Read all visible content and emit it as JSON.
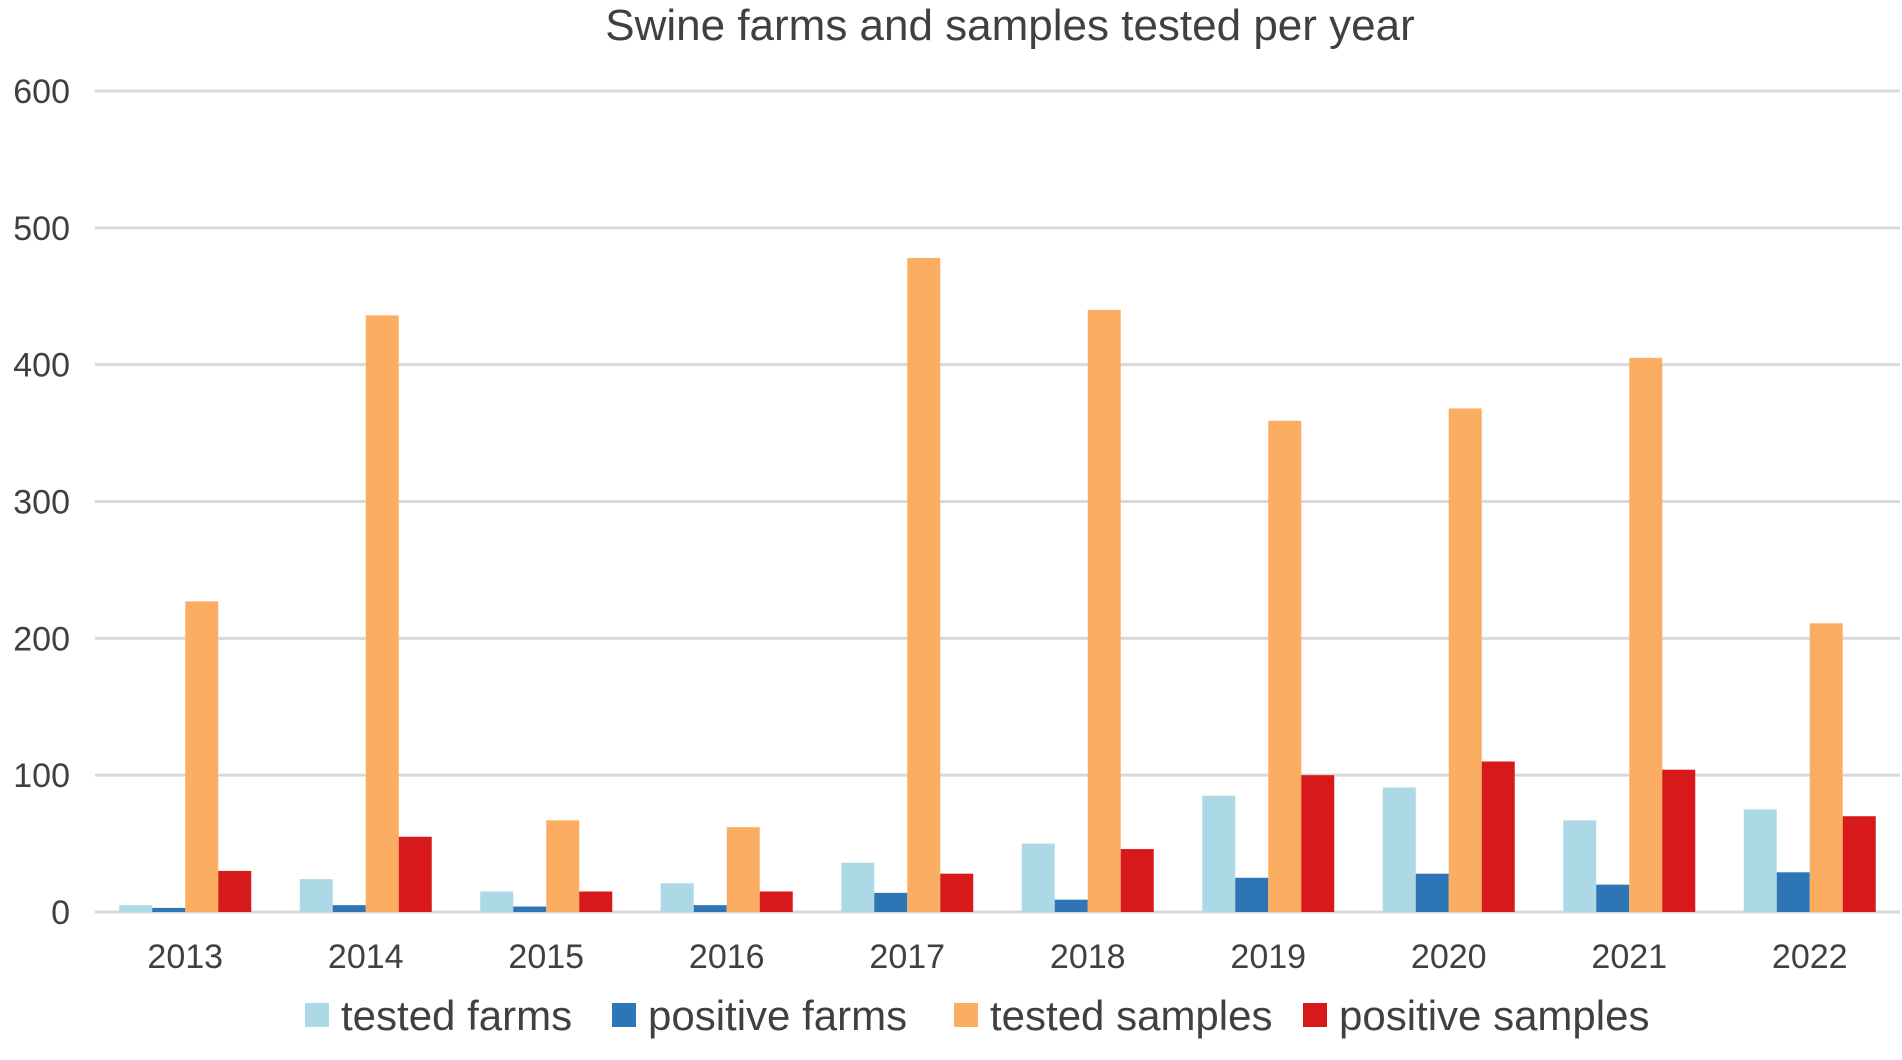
{
  "chart_data": {
    "type": "bar",
    "title": "Swine farms and samples tested per year",
    "xlabel": "",
    "ylabel": "",
    "ylim": [
      0,
      600
    ],
    "yticks": [
      0,
      100,
      200,
      300,
      400,
      500,
      600
    ],
    "grid": true,
    "legend_position": "bottom",
    "categories": [
      "2013",
      "2014",
      "2015",
      "2016",
      "2017",
      "2018",
      "2019",
      "2020",
      "2021",
      "2022"
    ],
    "series": [
      {
        "name": "tested farms",
        "color": "#add8e6",
        "values": [
          5,
          24,
          15,
          21,
          36,
          50,
          85,
          91,
          67,
          75
        ]
      },
      {
        "name": "positive farms",
        "color": "#2e75b6",
        "values": [
          3,
          5,
          4,
          5,
          14,
          9,
          25,
          28,
          20,
          29
        ]
      },
      {
        "name": "tested samples",
        "color": "#fbae62",
        "values": [
          227,
          436,
          67,
          62,
          478,
          440,
          359,
          368,
          405,
          211
        ]
      },
      {
        "name": "positive samples",
        "color": "#d7191c",
        "values": [
          30,
          55,
          15,
          15,
          28,
          46,
          100,
          110,
          104,
          70
        ]
      }
    ]
  }
}
